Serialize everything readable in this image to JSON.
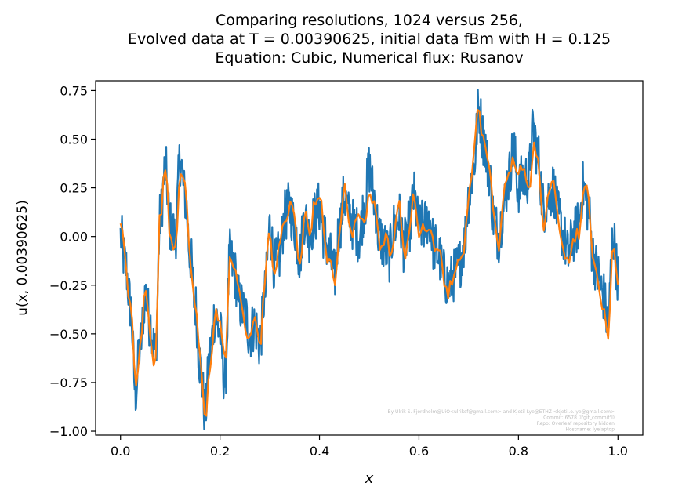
{
  "chart_data": {
    "type": "line",
    "title_lines": [
      "Comparing resolutions, 1024 versus 256,",
      "Evolved data at T = 0.00390625, initial data fBm with H = 0.125",
      "Equation: Cubic, Numerical flux: Rusanov"
    ],
    "xlabel": "x",
    "ylabel": "u(x, 0.00390625)",
    "xlim": [
      -0.05,
      1.05
    ],
    "ylim": [
      -1.02,
      0.8
    ],
    "x_ticks": [
      0.0,
      0.2,
      0.4,
      0.6,
      0.8,
      1.0
    ],
    "x_tick_labels": [
      "0.0",
      "0.2",
      "0.4",
      "0.6",
      "0.8",
      "1.0"
    ],
    "y_ticks": [
      0.75,
      0.5,
      0.25,
      0.0,
      -0.25,
      -0.5,
      -0.75,
      -1.0
    ],
    "y_tick_labels": [
      "0.75",
      "0.50",
      "0.25",
      "0.00",
      "−0.25",
      "−0.50",
      "−0.75",
      "−1.00"
    ],
    "grid": false,
    "legend": "none",
    "anchors": [
      [
        0.0,
        0.0
      ],
      [
        0.01,
        -0.15
      ],
      [
        0.02,
        -0.35
      ],
      [
        0.03,
        -0.8
      ],
      [
        0.04,
        -0.55
      ],
      [
        0.05,
        -0.3
      ],
      [
        0.06,
        -0.45
      ],
      [
        0.07,
        -0.6
      ],
      [
        0.08,
        0.1
      ],
      [
        0.09,
        0.35
      ],
      [
        0.1,
        0.05
      ],
      [
        0.11,
        0.0
      ],
      [
        0.12,
        0.4
      ],
      [
        0.13,
        0.2
      ],
      [
        0.14,
        -0.1
      ],
      [
        0.15,
        -0.35
      ],
      [
        0.16,
        -0.65
      ],
      [
        0.17,
        -0.9
      ],
      [
        0.18,
        -0.6
      ],
      [
        0.19,
        -0.4
      ],
      [
        0.2,
        -0.5
      ],
      [
        0.21,
        -0.75
      ],
      [
        0.22,
        -0.1
      ],
      [
        0.23,
        -0.2
      ],
      [
        0.24,
        -0.35
      ],
      [
        0.25,
        -0.4
      ],
      [
        0.26,
        -0.5
      ],
      [
        0.27,
        -0.45
      ],
      [
        0.28,
        -0.55
      ],
      [
        0.29,
        -0.3
      ],
      [
        0.3,
        0.05
      ],
      [
        0.31,
        -0.15
      ],
      [
        0.32,
        -0.1
      ],
      [
        0.33,
        0.1
      ],
      [
        0.34,
        0.15
      ],
      [
        0.35,
        0.05
      ],
      [
        0.36,
        -0.1
      ],
      [
        0.37,
        0.1
      ],
      [
        0.38,
        0.0
      ],
      [
        0.39,
        0.1
      ],
      [
        0.4,
        0.15
      ],
      [
        0.41,
        0.0
      ],
      [
        0.42,
        -0.1
      ],
      [
        0.43,
        -0.2
      ],
      [
        0.44,
        0.05
      ],
      [
        0.45,
        0.2
      ],
      [
        0.46,
        0.1
      ],
      [
        0.47,
        0.05
      ],
      [
        0.48,
        0.0
      ],
      [
        0.49,
        0.15
      ],
      [
        0.5,
        0.35
      ],
      [
        0.51,
        0.2
      ],
      [
        0.52,
        0.0
      ],
      [
        0.53,
        -0.05
      ],
      [
        0.54,
        -0.1
      ],
      [
        0.55,
        0.05
      ],
      [
        0.56,
        0.1
      ],
      [
        0.57,
        -0.05
      ],
      [
        0.58,
        0.05
      ],
      [
        0.59,
        0.2
      ],
      [
        0.6,
        0.05
      ],
      [
        0.61,
        0.05
      ],
      [
        0.62,
        0.1
      ],
      [
        0.63,
        -0.05
      ],
      [
        0.64,
        -0.1
      ],
      [
        0.65,
        -0.2
      ],
      [
        0.66,
        -0.25
      ],
      [
        0.67,
        -0.2
      ],
      [
        0.68,
        -0.15
      ],
      [
        0.69,
        -0.05
      ],
      [
        0.7,
        0.2
      ],
      [
        0.71,
        0.35
      ],
      [
        0.72,
        0.65
      ],
      [
        0.73,
        0.5
      ],
      [
        0.74,
        0.35
      ],
      [
        0.75,
        0.1
      ],
      [
        0.76,
        0.0
      ],
      [
        0.77,
        0.15
      ],
      [
        0.78,
        0.3
      ],
      [
        0.79,
        0.45
      ],
      [
        0.8,
        0.25
      ],
      [
        0.81,
        0.3
      ],
      [
        0.82,
        0.3
      ],
      [
        0.83,
        0.55
      ],
      [
        0.84,
        0.4
      ],
      [
        0.85,
        0.15
      ],
      [
        0.86,
        0.2
      ],
      [
        0.87,
        0.25
      ],
      [
        0.88,
        0.1
      ],
      [
        0.89,
        0.0
      ],
      [
        0.9,
        -0.1
      ],
      [
        0.91,
        0.0
      ],
      [
        0.92,
        0.05
      ],
      [
        0.93,
        0.25
      ],
      [
        0.94,
        0.15
      ],
      [
        0.95,
        -0.1
      ],
      [
        0.96,
        -0.2
      ],
      [
        0.97,
        -0.3
      ],
      [
        0.98,
        -0.45
      ],
      [
        0.99,
        0.0
      ],
      [
        1.0,
        -0.2
      ]
    ],
    "series": [
      {
        "resolution": 1024,
        "color": "#1f77b4",
        "stroke": 2.2
      },
      {
        "resolution": 256,
        "color": "#ff7f0e",
        "stroke": 2.2
      }
    ],
    "watermark": [
      "By Ulrik S. Fjordholm@UiO<ulriksf@gmail.com> and Kjetil Lye@ETHZ <kjetil.o.lye@gmail.com>",
      "Commit: 6578 (['git_commit'])",
      "Repo: Overleaf repository hidden",
      "Hostname: lyelaptop"
    ]
  }
}
